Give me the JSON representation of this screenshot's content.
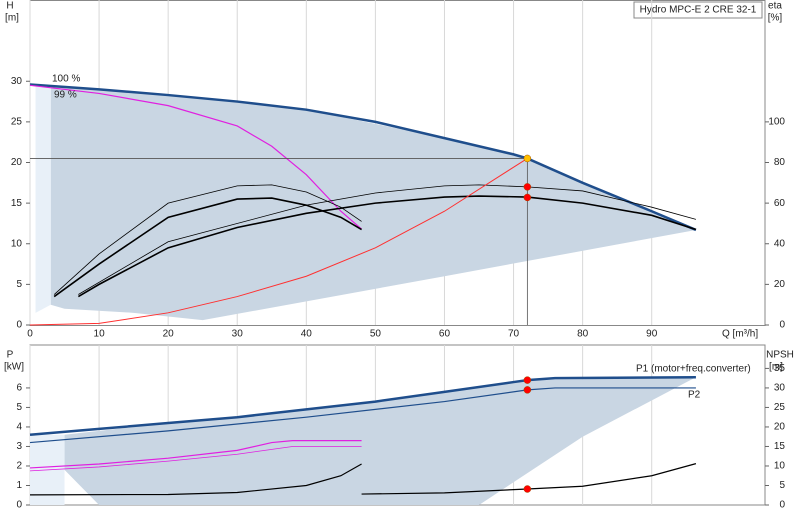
{
  "chart_data": [
    {
      "type": "line",
      "title": "Hydro MPC-E 2 CRE 32-1",
      "ylabel": "H",
      "yunit": "[m]",
      "y2label": "eta",
      "y2unit": "[%]",
      "xlabel": "Q [m³/h]",
      "xlim": [
        0,
        106.4
      ],
      "xticks": [
        0,
        10,
        20,
        30,
        40,
        50,
        60,
        70,
        80,
        90
      ],
      "ylim": [
        0,
        40
      ],
      "yticks": [
        0,
        5,
        10,
        15,
        20,
        25,
        30
      ],
      "y2lim": [
        0,
        160
      ],
      "y2ticks": [
        0,
        20,
        40,
        60,
        80,
        100
      ],
      "grid": true,
      "series": [
        {
          "style": "area",
          "color": "#c9d6e3",
          "x": [
            3,
            20,
            40,
            60,
            72,
            80,
            90,
            96.4,
            60,
            25,
            15,
            5,
            3
          ],
          "values": [
            29.3,
            28.3,
            26.5,
            23,
            20.5,
            17.5,
            14,
            11.7,
            6,
            0.6,
            1.5,
            2,
            2.5
          ]
        },
        {
          "style": "area",
          "color": "#e8f0f8",
          "x": [
            0.8,
            3,
            3,
            0.8
          ],
          "values": [
            1.5,
            2.5,
            29.3,
            29.6
          ]
        },
        {
          "name": "100 %",
          "color": "#1f4e8c",
          "width": 2.5,
          "x": [
            0,
            10,
            20,
            30,
            40,
            50,
            60,
            70,
            72,
            80,
            90,
            96.4
          ],
          "values": [
            29.6,
            29,
            28.3,
            27.5,
            26.5,
            25,
            23,
            21,
            20.5,
            17.5,
            14,
            11.7
          ]
        },
        {
          "name": "99 %",
          "color": "#e020e0",
          "width": 1.2,
          "x": [
            0,
            10,
            20,
            30,
            35,
            40,
            45,
            48
          ],
          "values": [
            29.5,
            28.5,
            27,
            24.5,
            22,
            18.5,
            14,
            11.8
          ]
        },
        {
          "color": "#000000",
          "width": 1.6,
          "axis": "y2",
          "x": [
            7,
            10,
            20,
            30,
            40,
            50,
            60,
            65,
            72,
            80,
            90,
            96.4
          ],
          "values": [
            14,
            20,
            38,
            48,
            55,
            60,
            63,
            63.5,
            63,
            60,
            54,
            47
          ]
        },
        {
          "color": "#000000",
          "width": 0.8,
          "axis": "y2",
          "x": [
            7,
            20,
            40,
            50,
            60,
            65,
            72,
            80,
            90,
            96.4
          ],
          "values": [
            15,
            41,
            59,
            65,
            68.5,
            69,
            68,
            66,
            58,
            52
          ]
        },
        {
          "color": "#000000",
          "width": 1.6,
          "axis": "y2",
          "x": [
            3.5,
            10,
            20,
            30,
            35,
            40,
            45,
            48
          ],
          "values": [
            14,
            30,
            53,
            62,
            62.5,
            59,
            53,
            47
          ]
        },
        {
          "color": "#000000",
          "width": 0.8,
          "axis": "y2",
          "x": [
            3.5,
            10,
            20,
            30,
            35,
            40,
            45,
            48
          ],
          "values": [
            15,
            35,
            60,
            68.5,
            69,
            65.5,
            58,
            51
          ]
        },
        {
          "color": "#ff3030",
          "width": 1,
          "x": [
            0,
            10,
            20,
            30,
            40,
            50,
            60,
            72
          ],
          "values": [
            0,
            0.2,
            1.5,
            3.5,
            6,
            9.5,
            14,
            20.5
          ]
        },
        {
          "color": "#555555",
          "width": 0.8,
          "x": [
            0,
            72
          ],
          "values": [
            20.5,
            20.5
          ]
        },
        {
          "color": "#555555",
          "width": 0.8,
          "x": [
            72,
            72
          ],
          "values": [
            20.5,
            0
          ]
        },
        {
          "style": "markers",
          "color": "#ff0000",
          "x": [
            72,
            72
          ],
          "values": [
            17,
            15.7
          ]
        },
        {
          "style": "markers",
          "color": "#ffc000",
          "x": [
            72
          ],
          "values": [
            20.5
          ]
        }
      ]
    },
    {
      "type": "line",
      "ylabel": "P",
      "yunit": "[kW]",
      "y2label": "NPSH",
      "y2unit": "[m]",
      "xlim": [
        0,
        106.4
      ],
      "ylim": [
        0,
        8.2
      ],
      "yticks": [
        0,
        1,
        2,
        3,
        4,
        5,
        6
      ],
      "y2lim": [
        0,
        41
      ],
      "y2ticks": [
        0,
        5,
        10,
        15,
        20,
        25,
        30,
        35
      ],
      "grid": true,
      "series": [
        {
          "style": "area",
          "color": "#c9d6e3",
          "x": [
            5,
            20,
            40,
            60,
            72,
            96.4,
            80,
            65,
            10,
            5
          ],
          "values": [
            3.6,
            4.2,
            4.9,
            5.8,
            6.4,
            6.55,
            3.5,
            0,
            0,
            1.8
          ]
        },
        {
          "style": "area",
          "color": "#e8f0f8",
          "x": [
            0,
            5,
            5,
            0
          ],
          "values": [
            0,
            0,
            3.6,
            3.6
          ]
        },
        {
          "name": "P1 (motor+freq.converter)",
          "color": "#1f4e8c",
          "width": 2.5,
          "x": [
            0,
            10,
            20,
            30,
            40,
            50,
            60,
            70,
            72,
            76,
            96.4
          ],
          "values": [
            3.6,
            3.9,
            4.2,
            4.5,
            4.9,
            5.3,
            5.8,
            6.3,
            6.4,
            6.5,
            6.55
          ]
        },
        {
          "name": "P2",
          "color": "#1f4e8c",
          "width": 1.2,
          "x": [
            0,
            20,
            40,
            60,
            72,
            76,
            96.4
          ],
          "values": [
            3.2,
            3.8,
            4.5,
            5.3,
            5.9,
            6,
            6
          ]
        },
        {
          "color": "#e020e0",
          "width": 1.2,
          "x": [
            0,
            10,
            20,
            30,
            35,
            38,
            48
          ],
          "values": [
            1.9,
            2.1,
            2.4,
            2.8,
            3.2,
            3.3,
            3.3
          ]
        },
        {
          "color": "#e020e0",
          "width": 0.8,
          "x": [
            0,
            10,
            20,
            30,
            38,
            48
          ],
          "values": [
            1.75,
            1.95,
            2.25,
            2.6,
            3,
            3
          ]
        },
        {
          "color": "#000000",
          "width": 1.2,
          "axis": "y2",
          "x": [
            0,
            20,
            30,
            40,
            45,
            48
          ],
          "values": [
            2.6,
            2.7,
            3.2,
            5,
            7.5,
            10.5
          ]
        },
        {
          "color": "#000000",
          "width": 1.2,
          "axis": "y2",
          "x": [
            48,
            60,
            72,
            80,
            90,
            96.4
          ],
          "values": [
            2.8,
            3.1,
            4.1,
            4.8,
            7.5,
            10.6
          ]
        },
        {
          "style": "markers",
          "color": "#ff0000",
          "x": [
            72,
            72
          ],
          "values": [
            6.4,
            5.9
          ]
        },
        {
          "style": "markers",
          "color": "#ff0000",
          "axis": "y2",
          "x": [
            72
          ],
          "values": [
            4.1
          ]
        }
      ]
    }
  ]
}
